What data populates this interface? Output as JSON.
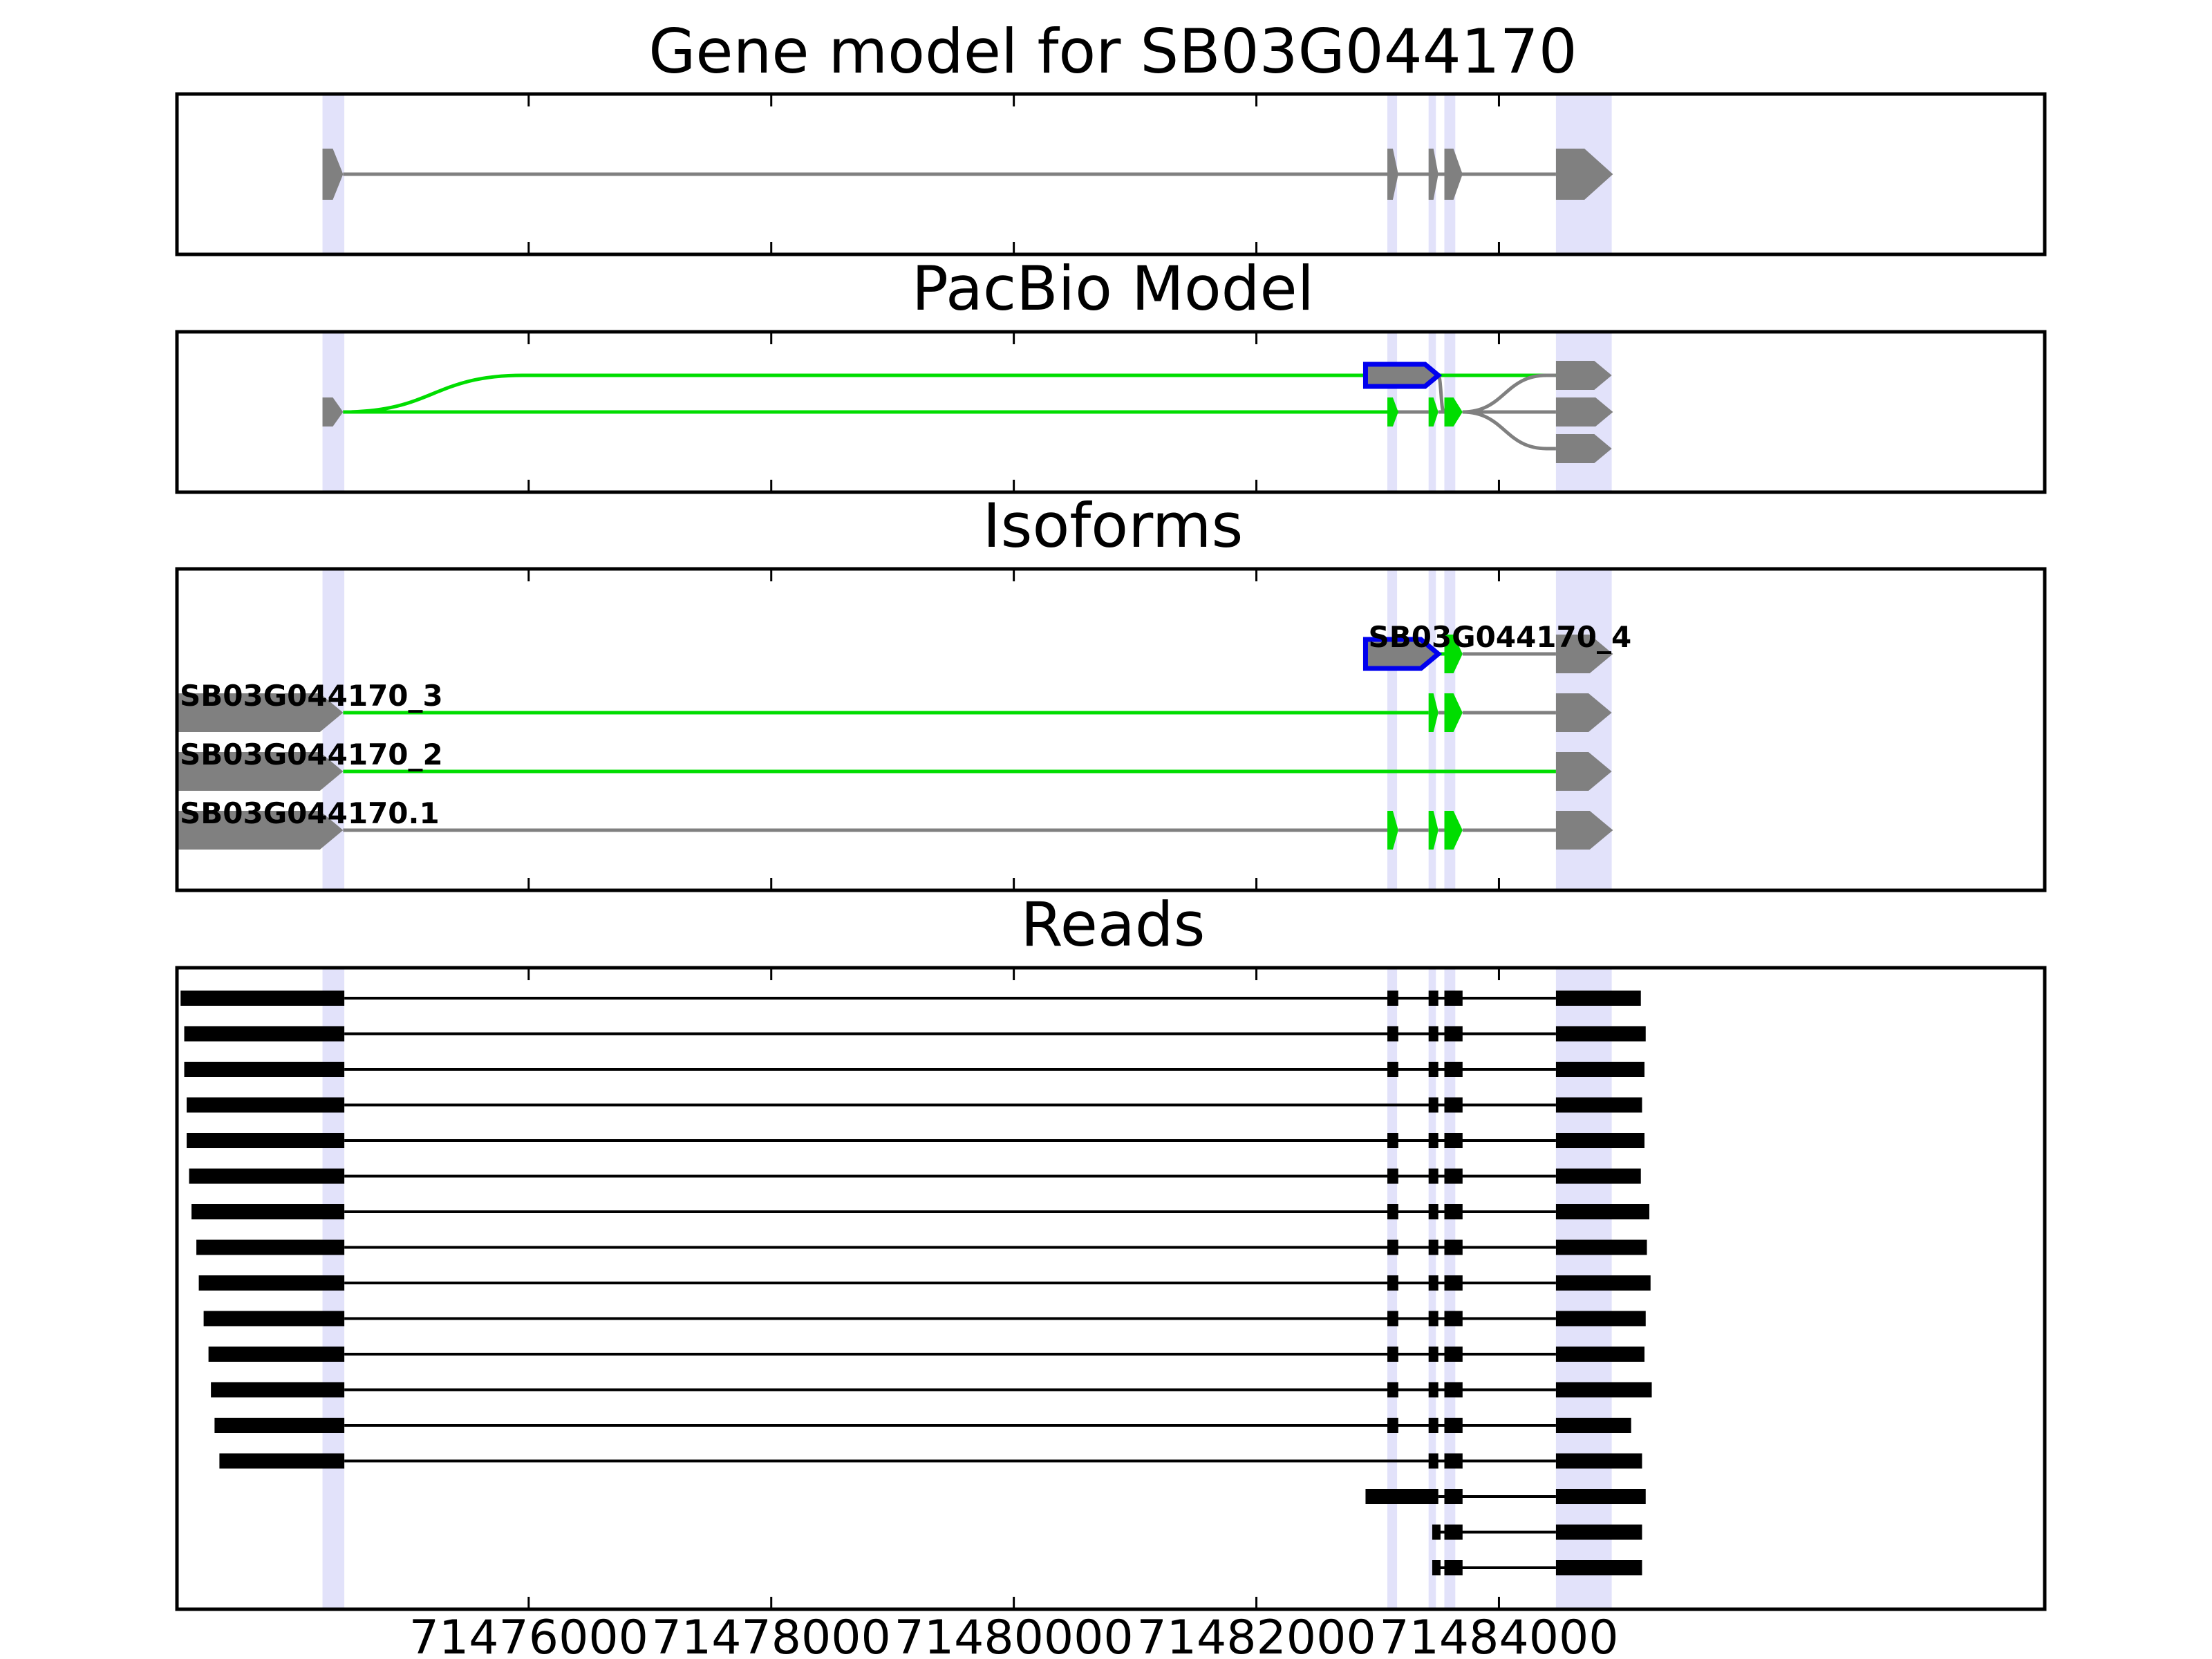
{
  "colors": {
    "exon": "#808080",
    "intron": "#808080",
    "green": "#00dd00",
    "blue": "#0000ee",
    "read": "#000000",
    "highlight": "#e2e2fa"
  },
  "chart_data": {
    "type": "gene-model-tracks",
    "xlim": [
      71473100,
      71488500
    ],
    "xticks": [
      71476000,
      71478000,
      71480000,
      71482000,
      71484000
    ],
    "xtick_labels": [
      "71476000",
      "71478000",
      "71480000",
      "71482000",
      "71484000"
    ],
    "highlight_regions": [
      [
        71474300,
        71474480
      ],
      [
        71483080,
        71483160
      ],
      [
        71483420,
        71483480
      ],
      [
        71483550,
        71483640
      ],
      [
        71484470,
        71484930
      ]
    ],
    "panels": [
      {
        "id": "gene-model",
        "title": "Gene model for SB03G044170",
        "tracks": [
          {
            "exons": [
              [
                71474300,
                71474470
              ],
              [
                71483080,
                71483170
              ],
              [
                71483420,
                71483500
              ],
              [
                71483550,
                71483700
              ],
              [
                71484470,
                71484940
              ]
            ],
            "color": "grey"
          }
        ]
      },
      {
        "id": "pacbio-model",
        "title": "PacBio Model",
        "nodes": [
          {
            "id": "A",
            "lane": 2,
            "exon": [
              71474300,
              71474470
            ],
            "color": "grey"
          },
          {
            "id": "B",
            "lane": 1,
            "exon": [
              71482900,
              71483500
            ],
            "color": "blue"
          },
          {
            "id": "C",
            "lane": 2,
            "exon": [
              71483080,
              71483170
            ],
            "color": "green"
          },
          {
            "id": "D",
            "lane": 2,
            "exon": [
              71483420,
              71483500
            ],
            "color": "green"
          },
          {
            "id": "E",
            "lane": 2,
            "exon": [
              71483550,
              71483700
            ],
            "color": "green"
          },
          {
            "id": "F",
            "lane": 1,
            "exon": [
              71484470,
              71484930
            ],
            "color": "grey"
          },
          {
            "id": "G",
            "lane": 2,
            "exon": [
              71484470,
              71484940
            ],
            "color": "grey"
          },
          {
            "id": "H",
            "lane": 3,
            "exon": [
              71484470,
              71484930
            ],
            "color": "grey"
          }
        ],
        "edges": [
          {
            "from": "A",
            "to": "C",
            "color": "grey"
          },
          {
            "from": "A",
            "to": "F",
            "color": "green"
          },
          {
            "from": "A",
            "to": "D",
            "color": "green"
          },
          {
            "from": "B",
            "to": "F",
            "color": "green"
          },
          {
            "from": "B",
            "to": "E",
            "color": "grey"
          },
          {
            "from": "C",
            "to": "D",
            "color": "grey"
          },
          {
            "from": "D",
            "to": "E",
            "color": "grey"
          },
          {
            "from": "E",
            "to": "F",
            "color": "grey"
          },
          {
            "from": "E",
            "to": "G",
            "color": "grey"
          },
          {
            "from": "E",
            "to": "H",
            "color": "grey"
          }
        ]
      },
      {
        "id": "isoforms",
        "title": "Isoforms",
        "tracks": [
          {
            "label": "SB03G044170_4",
            "exons": [
              [
                71482900,
                71483500
              ],
              [
                71483550,
                71483700
              ],
              [
                71484470,
                71484940
              ]
            ],
            "colors": [
              "blue",
              "green",
              "grey"
            ],
            "introns": [
              "green",
              "grey"
            ]
          },
          {
            "label": "SB03G044170_3",
            "exons": [
              [
                71473100,
                71474470
              ],
              [
                71483420,
                71483500
              ],
              [
                71483550,
                71483700
              ],
              [
                71484470,
                71484930
              ]
            ],
            "colors": [
              "grey",
              "green",
              "green",
              "grey"
            ],
            "introns": [
              "green",
              "grey",
              "grey"
            ]
          },
          {
            "label": "SB03G044170_2",
            "exons": [
              [
                71473100,
                71474470
              ],
              [
                71484470,
                71484930
              ]
            ],
            "colors": [
              "grey",
              "grey"
            ],
            "introns": [
              "green"
            ]
          },
          {
            "label": "SB03G044170.1",
            "exons": [
              [
                71473100,
                71474470
              ],
              [
                71483080,
                71483170
              ],
              [
                71483420,
                71483500
              ],
              [
                71483550,
                71483700
              ],
              [
                71484470,
                71484940
              ]
            ],
            "colors": [
              "grey",
              "green",
              "green",
              "green",
              "grey"
            ],
            "introns": [
              "grey",
              "grey",
              "grey",
              "grey"
            ]
          }
        ]
      },
      {
        "id": "reads",
        "title": "Reads",
        "reads": [
          [
            [
              71473130,
              71474480
            ],
            [
              71483080,
              71483170
            ],
            [
              71483420,
              71483500
            ],
            [
              71483550,
              71483700
            ],
            [
              71484470,
              71485170
            ]
          ],
          [
            [
              71473160,
              71474480
            ],
            [
              71483080,
              71483170
            ],
            [
              71483420,
              71483500
            ],
            [
              71483550,
              71483700
            ],
            [
              71484470,
              71485210
            ]
          ],
          [
            [
              71473160,
              71474480
            ],
            [
              71483080,
              71483170
            ],
            [
              71483420,
              71483500
            ],
            [
              71483550,
              71483700
            ],
            [
              71484470,
              71485200
            ]
          ],
          [
            [
              71473180,
              71474480
            ],
            [
              71483420,
              71483500
            ],
            [
              71483550,
              71483700
            ],
            [
              71484470,
              71485180
            ]
          ],
          [
            [
              71473180,
              71474480
            ],
            [
              71483080,
              71483170
            ],
            [
              71483420,
              71483500
            ],
            [
              71483550,
              71483700
            ],
            [
              71484470,
              71485200
            ]
          ],
          [
            [
              71473200,
              71474480
            ],
            [
              71483080,
              71483170
            ],
            [
              71483420,
              71483500
            ],
            [
              71483550,
              71483700
            ],
            [
              71484470,
              71485170
            ]
          ],
          [
            [
              71473220,
              71474480
            ],
            [
              71483080,
              71483170
            ],
            [
              71483420,
              71483500
            ],
            [
              71483550,
              71483700
            ],
            [
              71484470,
              71485240
            ]
          ],
          [
            [
              71473260,
              71474480
            ],
            [
              71483080,
              71483170
            ],
            [
              71483420,
              71483500
            ],
            [
              71483550,
              71483700
            ],
            [
              71484470,
              71485220
            ]
          ],
          [
            [
              71473280,
              71474480
            ],
            [
              71483080,
              71483170
            ],
            [
              71483420,
              71483500
            ],
            [
              71483550,
              71483700
            ],
            [
              71484470,
              71485250
            ]
          ],
          [
            [
              71473320,
              71474480
            ],
            [
              71483080,
              71483170
            ],
            [
              71483420,
              71483500
            ],
            [
              71483550,
              71483700
            ],
            [
              71484470,
              71485210
            ]
          ],
          [
            [
              71473360,
              71474480
            ],
            [
              71483080,
              71483170
            ],
            [
              71483420,
              71483500
            ],
            [
              71483550,
              71483700
            ],
            [
              71484470,
              71485200
            ]
          ],
          [
            [
              71473380,
              71474480
            ],
            [
              71483080,
              71483170
            ],
            [
              71483420,
              71483500
            ],
            [
              71483550,
              71483700
            ],
            [
              71484470,
              71485260
            ]
          ],
          [
            [
              71473410,
              71474480
            ],
            [
              71483080,
              71483170
            ],
            [
              71483420,
              71483500
            ],
            [
              71483550,
              71483700
            ],
            [
              71484470,
              71485090
            ]
          ],
          [
            [
              71473450,
              71474480
            ],
            [
              71483420,
              71483500
            ],
            [
              71483550,
              71483700
            ],
            [
              71484470,
              71485180
            ]
          ],
          [
            [
              71482900,
              71483500
            ],
            [
              71483550,
              71483700
            ],
            [
              71484470,
              71485210
            ]
          ],
          [
            [
              71483450,
              71483500
            ],
            [
              71483550,
              71483700
            ],
            [
              71484470,
              71485180
            ]
          ],
          [
            [
              71483450,
              71483500
            ],
            [
              71483550,
              71483700
            ],
            [
              71484470,
              71485180
            ]
          ]
        ]
      }
    ]
  }
}
